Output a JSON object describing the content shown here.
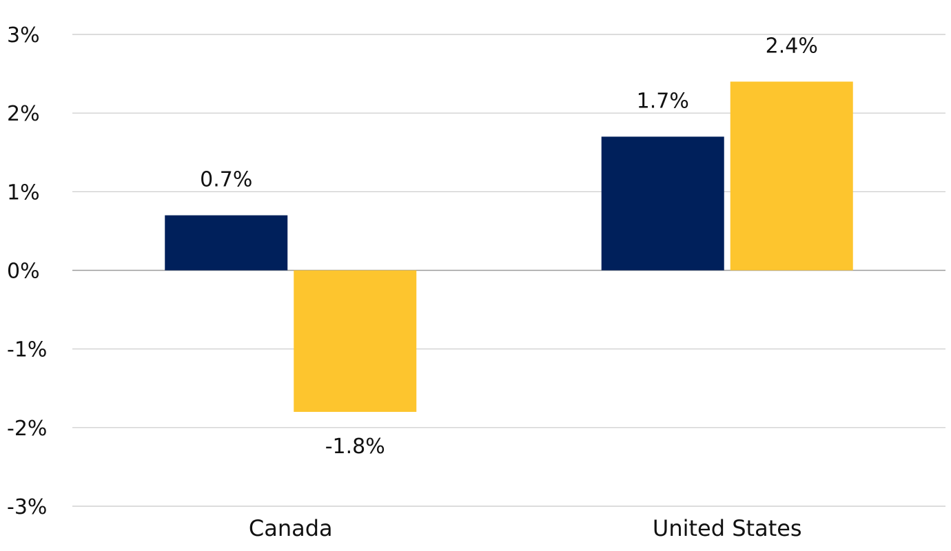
{
  "chart_data": {
    "type": "bar",
    "categories": [
      "Canada",
      "United States"
    ],
    "series": [
      {
        "color": "#00205b",
        "values": [
          0.7,
          1.7
        ],
        "labels": [
          "0.7%",
          "1.7%"
        ]
      },
      {
        "color": "#fdc52e",
        "values": [
          -1.8,
          2.4
        ],
        "labels": [
          "-1.8%",
          "2.4%"
        ]
      }
    ],
    "ylim": [
      -3,
      3
    ],
    "yticks": [
      3,
      2,
      1,
      0,
      -1,
      -2,
      -3
    ],
    "ytick_labels": [
      "3%",
      "2%",
      "1%",
      "0%",
      "-1%",
      "-2%",
      "-3%"
    ],
    "grid": true,
    "legend": "none"
  }
}
